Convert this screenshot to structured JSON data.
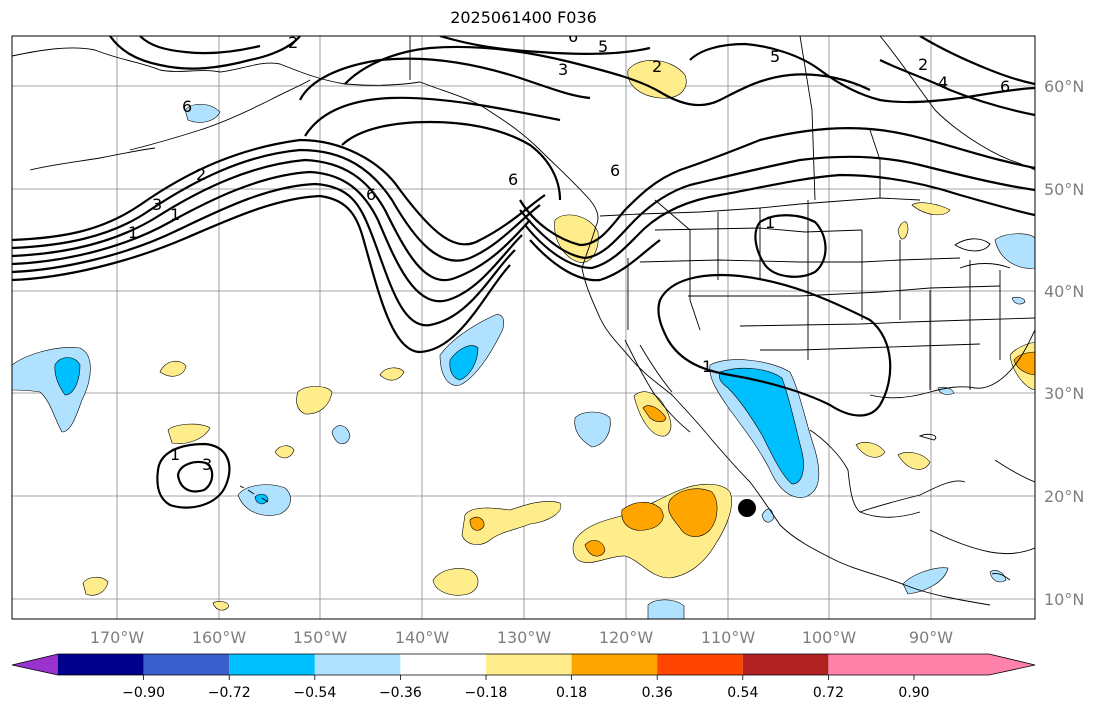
{
  "title": "2025061400 F036",
  "map": {
    "lon_labels": [
      "170°W",
      "160°W",
      "150°W",
      "140°W",
      "130°W",
      "120°W",
      "110°W",
      "100°W",
      "90°W"
    ],
    "lat_labels": [
      "60°N",
      "50°N",
      "40°N",
      "30°N",
      "20°N",
      "10°N"
    ],
    "contour_labels": [
      "2",
      "6",
      "5",
      "3",
      "2",
      "5",
      "4",
      "6",
      "6",
      "6",
      "6",
      "1",
      "3",
      "2",
      "1",
      "3",
      "6",
      "1",
      "1",
      "1",
      "2"
    ],
    "gridline_color": "#888888",
    "marker": "black-dot"
  },
  "colorbar": {
    "colors": [
      "#9a32cd",
      "#00008b",
      "#3a5fcd",
      "#00bfff",
      "#b0e2ff",
      "#ffffff",
      "#ffec8b",
      "#ffa500",
      "#ff4500",
      "#b22222",
      "#ff82ab"
    ],
    "tick_labels": [
      "−0.90",
      "−0.72",
      "−0.54",
      "−0.36",
      "−0.18",
      "0.18",
      "0.36",
      "0.54",
      "0.72",
      "0.90"
    ]
  }
}
